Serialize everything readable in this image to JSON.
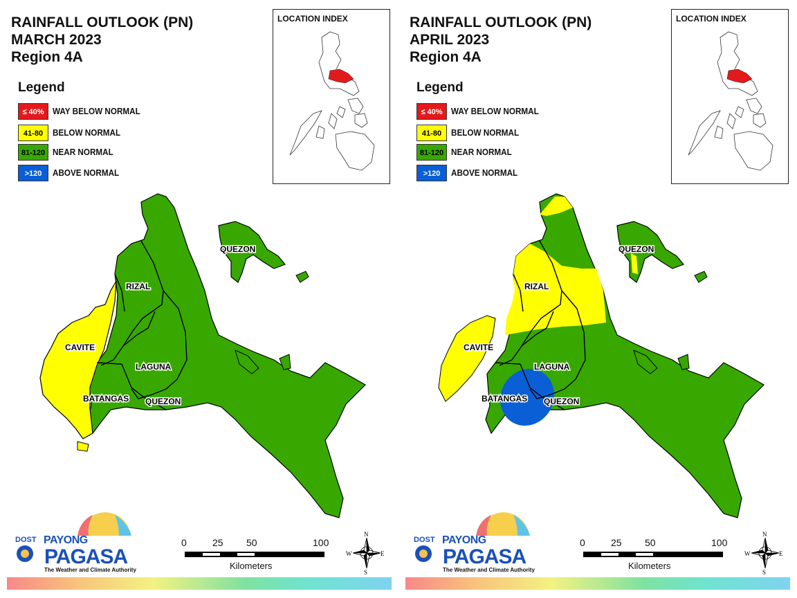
{
  "panels": [
    {
      "id": "march",
      "title_line1": "RAINFALL OUTLOOK (PN)",
      "title_line2": "MARCH 2023",
      "title_line3": "Region 4A",
      "location_index_label": "LOCATION INDEX",
      "place_labels": [
        "QUEZON",
        "RIZAL",
        "CAVITE",
        "LAGUNA",
        "BATANGAS",
        "QUEZON"
      ]
    },
    {
      "id": "april",
      "title_line1": "RAINFALL OUTLOOK (PN)",
      "title_line2": "APRIL 2023",
      "title_line3": "Region 4A",
      "location_index_label": "LOCATION INDEX",
      "place_labels": [
        "QUEZON",
        "RIZAL",
        "CAVITE",
        "LAGUNA",
        "BATANGAS",
        "QUEZON"
      ]
    }
  ],
  "legend": {
    "title": "Legend",
    "items": [
      {
        "swatch": "≤ 40%",
        "label": "WAY BELOW NORMAL",
        "color": "#e31a1c",
        "text_color": "#ffffff"
      },
      {
        "swatch": "41-80",
        "label": "BELOW NORMAL",
        "color": "#ffff00",
        "text_color": "#000000"
      },
      {
        "swatch": "81-120",
        "label": "NEAR NORMAL",
        "color": "#38a800",
        "text_color": "#000000"
      },
      {
        "swatch": ">120",
        "label": "ABOVE NORMAL",
        "color": "#0a5fd6",
        "text_color": "#ffffff"
      }
    ]
  },
  "scale_bar": {
    "ticks": [
      "0",
      "25",
      "50",
      "100"
    ],
    "unit": "Kilometers"
  },
  "compass": {
    "n": "N",
    "s": "S",
    "e": "E",
    "w": "W"
  },
  "logo": {
    "dost": "DOST",
    "payong": "PAYONG",
    "pagasa": "PAGASA",
    "tagline": "The Weather and Climate Authority"
  },
  "colors": {
    "near_normal": "#38a800",
    "below_normal": "#ffff00",
    "above_normal": "#0a5fd6",
    "way_below_normal": "#e31a1c"
  }
}
